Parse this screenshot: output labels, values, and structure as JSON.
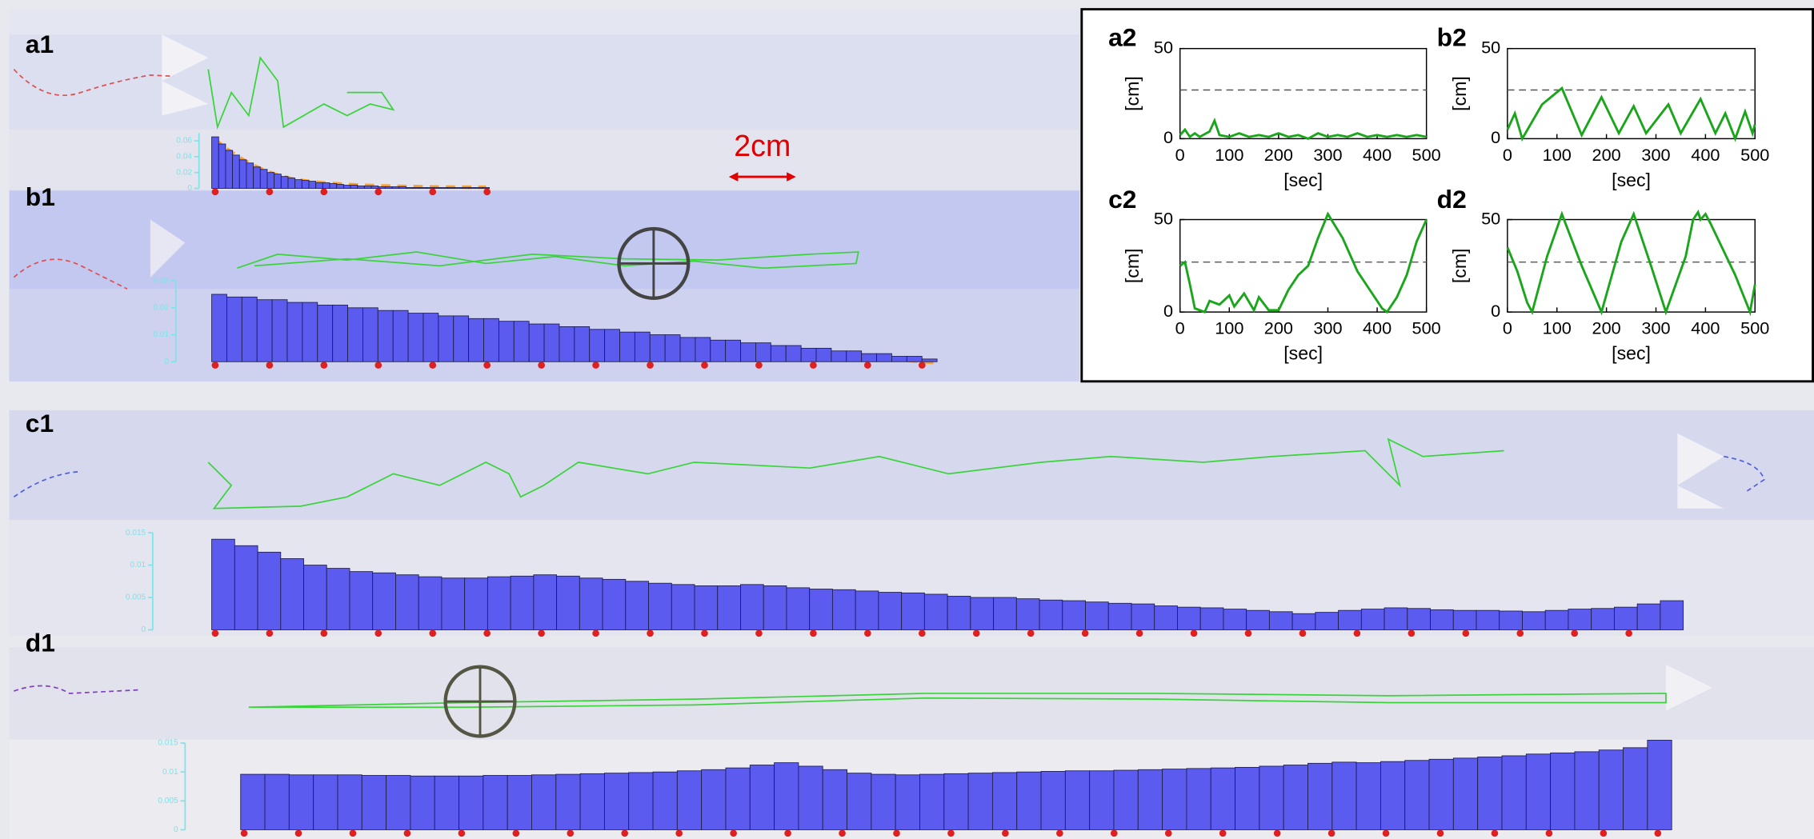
{
  "chart_data": [
    {
      "type": "bar",
      "title": "a1",
      "ylim": [
        0,
        0.07
      ],
      "yticks": [
        0,
        0.02,
        0.04,
        0.06
      ],
      "color": "#5b5bef",
      "values": [
        0.065,
        0.056,
        0.048,
        0.042,
        0.036,
        0.032,
        0.027,
        0.024,
        0.02,
        0.018,
        0.015,
        0.013,
        0.011,
        0.01,
        0.009,
        0.007,
        0.007,
        0.006,
        0.005,
        0.004,
        0.004,
        0.003,
        0.003,
        0.003,
        0.002,
        0.002,
        0.002,
        0.002,
        0.001,
        0.001,
        0.001,
        0.001,
        0.001,
        0.001,
        0.001,
        0.001,
        0.001,
        0.001,
        0.001,
        0.001
      ]
    },
    {
      "type": "bar",
      "title": "b1",
      "ylim": [
        0,
        0.03
      ],
      "yticks": [
        0,
        0.01,
        0.02,
        0.03
      ],
      "color": "#5b5bef",
      "values": [
        0.025,
        0.024,
        0.024,
        0.023,
        0.023,
        0.022,
        0.022,
        0.021,
        0.021,
        0.02,
        0.02,
        0.019,
        0.019,
        0.018,
        0.018,
        0.017,
        0.017,
        0.016,
        0.016,
        0.015,
        0.015,
        0.014,
        0.014,
        0.013,
        0.013,
        0.012,
        0.012,
        0.011,
        0.011,
        0.01,
        0.01,
        0.009,
        0.009,
        0.008,
        0.008,
        0.007,
        0.007,
        0.006,
        0.006,
        0.005,
        0.005,
        0.004,
        0.004,
        0.003,
        0.003,
        0.002,
        0.002,
        0.001
      ]
    },
    {
      "type": "bar",
      "title": "c1",
      "ylim": [
        0,
        0.015
      ],
      "yticks": [
        0,
        0.005,
        0.01,
        0.015
      ],
      "color": "#5b5bef",
      "values": [
        0.014,
        0.013,
        0.012,
        0.011,
        0.01,
        0.0095,
        0.009,
        0.0088,
        0.0085,
        0.0082,
        0.008,
        0.008,
        0.0082,
        0.0083,
        0.0085,
        0.0083,
        0.008,
        0.0078,
        0.0075,
        0.0072,
        0.007,
        0.0068,
        0.0068,
        0.007,
        0.0068,
        0.0065,
        0.0063,
        0.0062,
        0.006,
        0.0058,
        0.0057,
        0.0055,
        0.0052,
        0.005,
        0.005,
        0.0048,
        0.0046,
        0.0045,
        0.0043,
        0.0041,
        0.004,
        0.0037,
        0.0035,
        0.0034,
        0.0032,
        0.003,
        0.0028,
        0.0025,
        0.0027,
        0.003,
        0.0032,
        0.0034,
        0.0033,
        0.0031,
        0.003,
        0.003,
        0.0029,
        0.0028,
        0.003,
        0.0032,
        0.0033,
        0.0035,
        0.004,
        0.0045
      ]
    },
    {
      "type": "bar",
      "title": "d1",
      "ylim": [
        0,
        0.015
      ],
      "yticks": [
        0,
        0.005,
        0.01,
        0.015
      ],
      "color": "#5b5bef",
      "values": [
        0.0096,
        0.0096,
        0.0095,
        0.0095,
        0.0095,
        0.0094,
        0.0094,
        0.0093,
        0.0093,
        0.0093,
        0.0094,
        0.0094,
        0.0095,
        0.0096,
        0.0097,
        0.0098,
        0.0099,
        0.01,
        0.0102,
        0.0104,
        0.0107,
        0.0112,
        0.0116,
        0.011,
        0.0104,
        0.0098,
        0.0096,
        0.0095,
        0.0096,
        0.0097,
        0.0098,
        0.0099,
        0.01,
        0.0101,
        0.0102,
        0.0102,
        0.0103,
        0.0104,
        0.0105,
        0.0106,
        0.0107,
        0.0108,
        0.011,
        0.0112,
        0.0115,
        0.0117,
        0.0116,
        0.0118,
        0.012,
        0.0122,
        0.0124,
        0.0126,
        0.0128,
        0.0131,
        0.0133,
        0.0135,
        0.0138,
        0.0142,
        0.0155
      ]
    },
    {
      "type": "line",
      "title": "a2",
      "x_label": "[sec]",
      "y_label": "[cm]",
      "xlim": [
        0,
        500
      ],
      "ylim": [
        0,
        50
      ],
      "xticks": [
        0,
        100,
        200,
        300,
        400,
        500
      ],
      "yticks": [
        0,
        50
      ],
      "reference_line": 27,
      "x": [
        0,
        10,
        20,
        30,
        40,
        60,
        70,
        80,
        100,
        120,
        140,
        160,
        180,
        200,
        220,
        240,
        260,
        280,
        300,
        320,
        340,
        360,
        380,
        400,
        420,
        440,
        460,
        480,
        500
      ],
      "series": [
        {
          "color": "#1aa61a",
          "values": [
            2,
            5,
            1,
            3,
            1,
            4,
            10,
            2,
            1,
            3,
            1,
            2,
            1,
            3,
            1,
            2,
            0,
            3,
            1,
            2,
            1,
            3,
            1,
            2,
            1,
            2,
            1,
            2,
            1
          ]
        }
      ]
    },
    {
      "type": "line",
      "title": "b2",
      "x_label": "[sec]",
      "y_label": "[cm]",
      "xlim": [
        0,
        500
      ],
      "ylim": [
        0,
        50
      ],
      "xticks": [
        0,
        100,
        200,
        300,
        400,
        500
      ],
      "yticks": [
        0,
        50
      ],
      "reference_line": 27,
      "x": [
        0,
        15,
        30,
        70,
        110,
        150,
        190,
        225,
        255,
        280,
        325,
        350,
        390,
        420,
        440,
        460,
        480,
        495,
        500
      ],
      "series": [
        {
          "color": "#1aa61a",
          "values": [
            5,
            14,
            0,
            19,
            28,
            2,
            23,
            3,
            18,
            3,
            19,
            3,
            22,
            3,
            14,
            0,
            15,
            3,
            8
          ]
        }
      ]
    },
    {
      "type": "line",
      "title": "c2",
      "x_label": "[sec]",
      "y_label": "[cm]",
      "xlim": [
        0,
        500
      ],
      "ylim": [
        0,
        50
      ],
      "xticks": [
        0,
        100,
        200,
        300,
        400,
        500
      ],
      "yticks": [
        0,
        50
      ],
      "reference_line": 27,
      "x": [
        0,
        10,
        20,
        30,
        50,
        60,
        80,
        100,
        110,
        130,
        150,
        160,
        180,
        200,
        220,
        240,
        260,
        280,
        300,
        330,
        360,
        390,
        410,
        420,
        440,
        460,
        480,
        500
      ],
      "series": [
        {
          "color": "#1aa61a",
          "values": [
            25,
            27,
            15,
            2,
            0,
            6,
            4,
            9,
            3,
            10,
            1,
            8,
            1,
            1,
            12,
            20,
            25,
            40,
            53,
            40,
            22,
            10,
            2,
            0,
            8,
            20,
            38,
            50
          ]
        }
      ]
    },
    {
      "type": "line",
      "title": "d2",
      "x_label": "[sec]",
      "y_label": "[cm]",
      "xlim": [
        0,
        500
      ],
      "ylim": [
        0,
        50
      ],
      "xticks": [
        0,
        100,
        200,
        300,
        400,
        500
      ],
      "yticks": [
        0,
        50
      ],
      "reference_line": 27,
      "x": [
        0,
        20,
        40,
        50,
        80,
        110,
        150,
        190,
        230,
        255,
        290,
        320,
        360,
        375,
        385,
        390,
        400,
        410,
        460,
        490,
        500
      ],
      "series": [
        {
          "color": "#1aa61a",
          "values": [
            35,
            22,
            5,
            0,
            30,
            53,
            25,
            0,
            38,
            53,
            25,
            0,
            30,
            50,
            54,
            50,
            53,
            48,
            20,
            0,
            15
          ]
        }
      ]
    }
  ],
  "scale_bar": {
    "label": "2cm"
  }
}
